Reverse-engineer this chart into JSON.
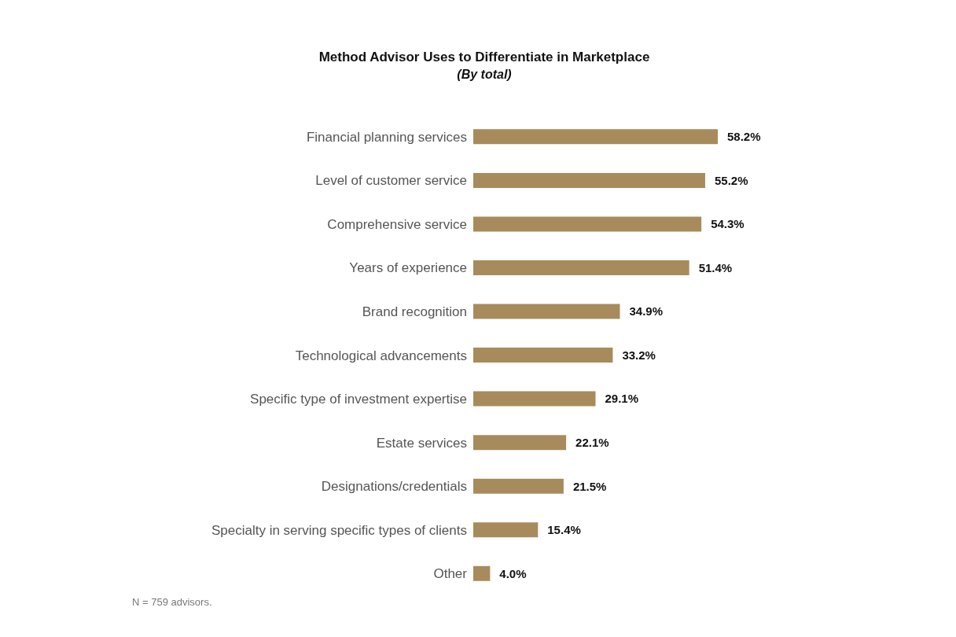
{
  "chart_data": {
    "type": "bar",
    "orientation": "horizontal",
    "title": "Method Advisor Uses to Differentiate in Marketplace",
    "subtitle": "(By total)",
    "categories": [
      "Financial planning services",
      "Level of customer service",
      "Comprehensive service",
      "Years of experience",
      "Brand recognition",
      "Technological advancements",
      "Specific type of investment expertise",
      "Estate services",
      "Designations/credentials",
      "Specialty in serving specific types of clients",
      "Other"
    ],
    "values": [
      58.2,
      55.2,
      54.3,
      51.4,
      34.9,
      33.2,
      29.1,
      22.1,
      21.5,
      15.4,
      4.0
    ],
    "value_labels": [
      "58.2%",
      "55.2%",
      "54.3%",
      "51.4%",
      "34.9%",
      "33.2%",
      "29.1%",
      "22.1%",
      "21.5%",
      "15.4%",
      "4.0%"
    ],
    "color": "#a88b5c",
    "annotations": [
      "N = 759 advisors."
    ]
  }
}
